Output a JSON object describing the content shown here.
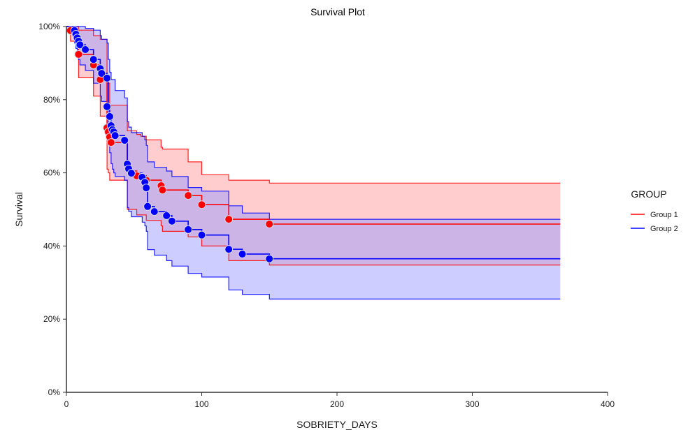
{
  "chart_data": {
    "type": "line",
    "subtype": "kaplan-meier-step",
    "title": "Survival Plot",
    "xlabel": "SOBRIETY_DAYS",
    "ylabel": "Survival",
    "xlim": [
      0,
      400
    ],
    "ylim": [
      0,
      100
    ],
    "x_ticks": [
      0,
      100,
      200,
      300,
      400
    ],
    "x_tick_labels": [
      "0",
      "100",
      "200",
      "300",
      "400"
    ],
    "y_ticks": [
      0,
      20,
      40,
      60,
      80,
      100
    ],
    "y_tick_labels": [
      "0%",
      "20%",
      "40%",
      "60%",
      "80%",
      "100%"
    ],
    "grid": false,
    "legend": {
      "title": "GROUP",
      "position": "right"
    },
    "x_end": 365,
    "series": [
      {
        "name": "Group 1",
        "color": "#ff0000",
        "band_color": "#ff9c9c",
        "survival": {
          "x": [
            0,
            3,
            9,
            20,
            25,
            30,
            31,
            32,
            33,
            45,
            52,
            59,
            70,
            71,
            90,
            100,
            120,
            150
          ],
          "y": [
            100,
            98.9,
            92.4,
            89.5,
            85.5,
            72.3,
            71.2,
            69.8,
            68.3,
            60.5,
            59.2,
            58.0,
            56.5,
            55.3,
            53.8,
            51.3,
            47.3,
            46.0
          ]
        },
        "upper": {
          "x": [
            0,
            3,
            9,
            20,
            25,
            30,
            31,
            32,
            33,
            45,
            52,
            55,
            59,
            70,
            71,
            90,
            100,
            120,
            150
          ],
          "y": [
            100,
            100,
            99.0,
            97.5,
            96.5,
            84.5,
            84.5,
            78.5,
            78.5,
            71.5,
            70.5,
            70.0,
            69.0,
            67.0,
            66.5,
            63.0,
            59.5,
            58.0,
            57.2
          ]
        },
        "lower": {
          "x": [
            0,
            3,
            9,
            20,
            25,
            30,
            31,
            32,
            33,
            45,
            52,
            59,
            70,
            71,
            90,
            100,
            120,
            150
          ],
          "y": [
            100,
            96.0,
            86.0,
            81.0,
            75.5,
            61.0,
            60.0,
            58.0,
            58.0,
            50.0,
            48.5,
            47.0,
            45.5,
            44.0,
            42.5,
            40.0,
            36.0,
            34.8
          ]
        },
        "censor_points": {
          "x": [
            3,
            9,
            20,
            25,
            30,
            31,
            32,
            33,
            52,
            59,
            70,
            71,
            90,
            100,
            120,
            150
          ],
          "y": [
            98.9,
            92.4,
            89.5,
            85.5,
            72.3,
            71.2,
            69.8,
            68.3,
            59.2,
            58.0,
            56.5,
            55.3,
            53.8,
            51.3,
            47.3,
            46.0
          ]
        }
      },
      {
        "name": "Group 2",
        "color": "#0000ff",
        "band_color": "#9c9cff",
        "survival": {
          "x": [
            0,
            6,
            7,
            8,
            9,
            10,
            14,
            20,
            25,
            26,
            30,
            31,
            32,
            33,
            34,
            35,
            36,
            43,
            45,
            46,
            48,
            56,
            58,
            59,
            60,
            65,
            74,
            78,
            90,
            100,
            120,
            130,
            150
          ],
          "y": [
            100,
            98.9,
            97.9,
            96.9,
            96.0,
            95.0,
            93.7,
            91.0,
            88.5,
            87.2,
            85.9,
            78.1,
            75.4,
            72.9,
            71.8,
            71.2,
            70.2,
            68.9,
            62.4,
            61.1,
            59.9,
            58.8,
            57.4,
            55.9,
            50.8,
            49.4,
            48.3,
            46.8,
            44.5,
            43.0,
            39.1,
            37.8,
            36.5
          ]
        },
        "upper": {
          "x": [
            0,
            14,
            20,
            25,
            26,
            30,
            31,
            32,
            33,
            36,
            43,
            45,
            46,
            48,
            56,
            58,
            59,
            60,
            65,
            74,
            78,
            90,
            100,
            120,
            130,
            150
          ],
          "y": [
            100,
            99.5,
            99.0,
            97.5,
            96.5,
            95.5,
            91.0,
            87.5,
            85.5,
            82.5,
            80.5,
            74.0,
            72.5,
            71.0,
            70.0,
            69.0,
            67.5,
            63.0,
            61.5,
            60.5,
            59.0,
            56.0,
            55.0,
            51.0,
            49.0,
            47.3
          ]
        },
        "lower": {
          "x": [
            0,
            6,
            7,
            8,
            9,
            10,
            14,
            20,
            25,
            26,
            30,
            31,
            32,
            33,
            34,
            35,
            36,
            43,
            45,
            46,
            48,
            56,
            58,
            59,
            60,
            65,
            74,
            78,
            90,
            100,
            120,
            130,
            150
          ],
          "y": [
            100,
            95.5,
            94.0,
            92.5,
            91.0,
            89.5,
            88.0,
            84.5,
            81.0,
            79.5,
            78.0,
            68.0,
            65.5,
            62.5,
            61.0,
            60.0,
            59.0,
            58.0,
            50.5,
            49.5,
            48.0,
            46.5,
            45.5,
            44.0,
            39.0,
            37.5,
            36.0,
            34.5,
            32.5,
            31.5,
            28.0,
            26.8,
            25.5
          ]
        },
        "censor_points": {
          "x": [
            6,
            7,
            8,
            9,
            10,
            14,
            20,
            25,
            26,
            30,
            30,
            32,
            33,
            34,
            35,
            36,
            43,
            45,
            46,
            48,
            56,
            58,
            59,
            60,
            65,
            74,
            78,
            90,
            100,
            120,
            130,
            150
          ],
          "y": [
            98.9,
            97.9,
            96.9,
            96.0,
            95.0,
            93.7,
            91.0,
            88.5,
            87.2,
            85.9,
            78.1,
            75.4,
            72.9,
            71.8,
            71.2,
            70.2,
            68.9,
            62.4,
            61.1,
            59.9,
            58.8,
            57.4,
            55.9,
            50.8,
            49.4,
            48.3,
            46.8,
            44.5,
            43.0,
            39.1,
            37.8,
            36.5
          ]
        }
      }
    ]
  }
}
